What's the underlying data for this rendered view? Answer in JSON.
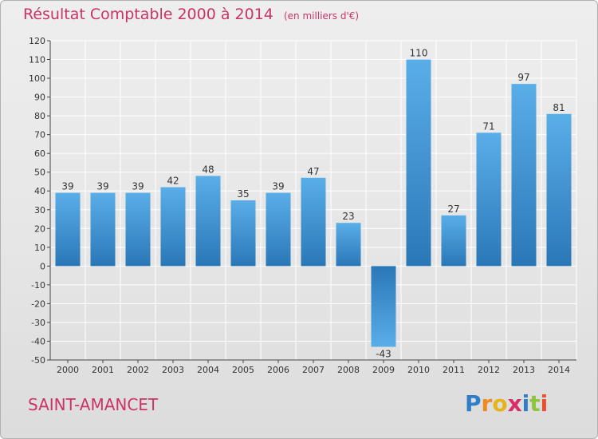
{
  "header": {
    "title": "Résultat Comptable 2000 à 2014",
    "unit": "(en milliers d'€)"
  },
  "footer": {
    "commune": "SAINT-AMANCET",
    "brand_letters": [
      "P",
      "r",
      "o",
      "x",
      "i",
      "t",
      "i"
    ],
    "brand_colors": [
      "#2f7fc8",
      "#f08a1e",
      "#e8b21a",
      "#d92d6a",
      "#2f7fc8",
      "#8cc63f",
      "#e84f2a"
    ]
  },
  "colors": {
    "title": "#cc3366",
    "bar_top": "#5aaee8",
    "bar_bottom": "#2a77b8",
    "grid": "#ffffff",
    "axis": "#444444"
  },
  "chart_data": {
    "type": "bar",
    "categories": [
      "2000",
      "2001",
      "2002",
      "2003",
      "2004",
      "2005",
      "2006",
      "2007",
      "2008",
      "2009",
      "2010",
      "2011",
      "2012",
      "2013",
      "2014"
    ],
    "values": [
      39,
      39,
      39,
      42,
      48,
      35,
      39,
      47,
      23,
      -43,
      110,
      27,
      71,
      97,
      81
    ],
    "ylim": [
      -50,
      120
    ],
    "yticks": [
      120,
      110,
      100,
      90,
      80,
      70,
      60,
      50,
      40,
      30,
      20,
      10,
      0,
      -10,
      -20,
      -30,
      -40,
      -50
    ],
    "grid": true
  }
}
